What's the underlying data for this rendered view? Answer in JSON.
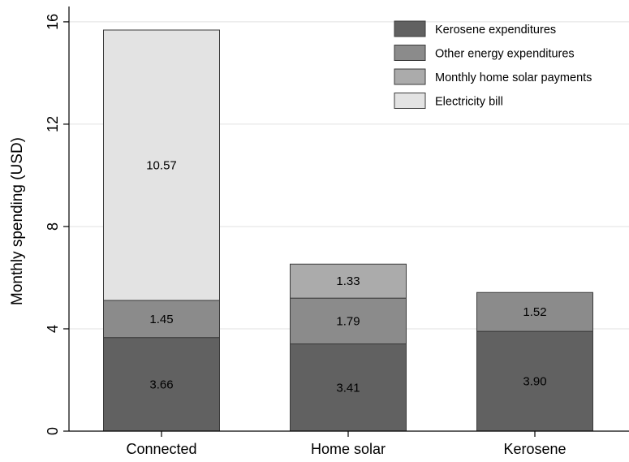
{
  "chart_data": {
    "type": "bar",
    "stacked": true,
    "title": "",
    "xlabel": "",
    "ylabel": "Monthly spending (USD)",
    "ylim": [
      0,
      16.6
    ],
    "yticks": [
      0,
      4,
      8,
      12,
      16
    ],
    "grid": "horizontal",
    "legend_position": "top-right",
    "categories": [
      "Connected",
      "Home solar",
      "Kerosene"
    ],
    "series": [
      {
        "name": "Kerosene expenditures",
        "color": "#616161",
        "values": [
          3.66,
          3.41,
          3.9
        ],
        "labels": [
          "3.66",
          "3.41",
          "3.90"
        ]
      },
      {
        "name": "Other energy expenditures",
        "color": "#8b8b8b",
        "values": [
          1.45,
          1.79,
          1.52
        ],
        "labels": [
          "1.45",
          "1.79",
          "1.52"
        ]
      },
      {
        "name": "Monthly home solar payments",
        "color": "#ababab",
        "values": [
          0,
          1.33,
          0
        ],
        "labels": [
          "",
          "1.33",
          ""
        ]
      },
      {
        "name": "Electricity bill",
        "color": "#e3e3e3",
        "values": [
          10.57,
          0,
          0
        ],
        "labels": [
          "10.57",
          "",
          ""
        ]
      }
    ]
  }
}
